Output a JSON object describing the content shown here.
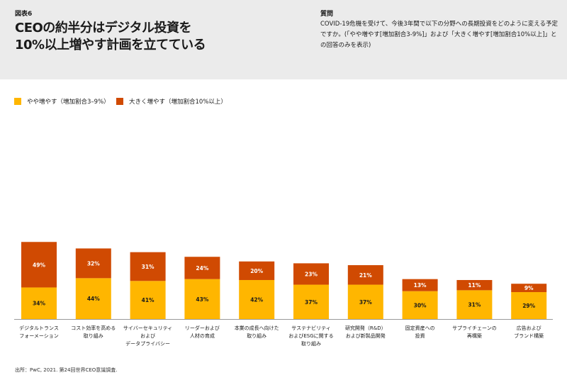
{
  "header": {
    "figure_label": "図表6",
    "title_line1": "CEOの約半分はデジタル投資を",
    "title_line2": "10%以上増やす計画を立てている",
    "question_label": "質問",
    "question_text": "COVID-19危機を受けて、今後3年間で以下の分野への長期投資をどのように変える予定ですか。(「やや増やす[増加割合3-9%]」および「大きく増やす[増加割合10%以上]」との回答のみを表示)"
  },
  "source": "出所：PwC, 2021. 第24回世界CEO意識調査.",
  "colors": {
    "moderate": "#ffb600",
    "large": "#d04a02",
    "axis": "#999999"
  },
  "chart_data": {
    "type": "bar",
    "stacked": true,
    "ylim": [
      0,
      100
    ],
    "categories": [
      [
        "デジタルトランス",
        "フォーメーション"
      ],
      [
        "コスト効率を高める",
        "取り組み"
      ],
      [
        "サイバーセキュリティ",
        "および",
        "データプライバシー"
      ],
      [
        "リーダーおよび",
        "人材の育成"
      ],
      [
        "本業の成長へ向けた",
        "取り組み"
      ],
      [
        "サステナビリティ",
        "およびESGに関する",
        "取り組み"
      ],
      [
        "研究開発（R&D）",
        "および新製品開発"
      ],
      [
        "固定資産への",
        "投資"
      ],
      [
        "サプライチェーンの",
        "再構築"
      ],
      [
        "広告および",
        "ブランド構築"
      ]
    ],
    "series": [
      {
        "name": "やや増やす（増加割合3–9%）",
        "values": [
          34,
          44,
          41,
          43,
          42,
          37,
          37,
          30,
          31,
          29
        ]
      },
      {
        "name": "大きく増やす（増加割合10%以上）",
        "values": [
          49,
          32,
          31,
          24,
          20,
          23,
          21,
          13,
          11,
          9
        ]
      }
    ],
    "value_labels": [
      [
        "34%",
        "44%",
        "41%",
        "43%",
        "42%",
        "37%",
        "37%",
        "30%",
        "31%",
        "29%"
      ],
      [
        "49%",
        "32%",
        "31%",
        "24%",
        "20%",
        "23%",
        "21%",
        "13%",
        "11%",
        "9%"
      ]
    ]
  }
}
